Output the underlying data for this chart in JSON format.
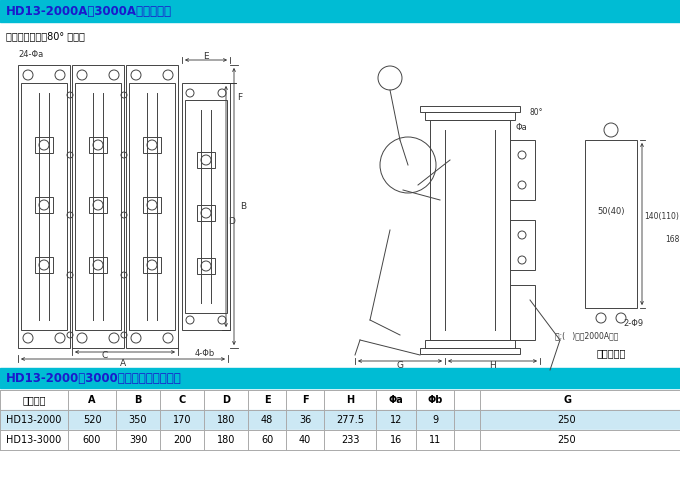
{
  "title1": "HD13-2000A、3000A刀开关外形",
  "title2": "HD13-2000、3000系列刀开关安装尺寸",
  "subtitle": "注提刀片打开到80° 的尺寸",
  "header_bg": "#00BCD4",
  "header_text": "#1a1aff",
  "table_header": [
    "型号规格",
    "A",
    "B",
    "C",
    "D",
    "E",
    "F",
    "H",
    "Φa",
    "Φb",
    "G"
  ],
  "row1": [
    "HD13-2000",
    "520",
    "350",
    "170",
    "180",
    "48",
    "36",
    "277.5",
    "12",
    "9",
    "250"
  ],
  "row2": [
    "HD13-3000",
    "600",
    "390",
    "200",
    "180",
    "60",
    "40",
    "233",
    "16",
    "11",
    "250"
  ],
  "row1_bg": "#cce8f4",
  "row2_bg": "#ffffff",
  "grid_color": "#aaaaaa",
  "drawing_color": "#444444",
  "dim_color": "#333333",
  "header_text_color": "#1a1acc"
}
